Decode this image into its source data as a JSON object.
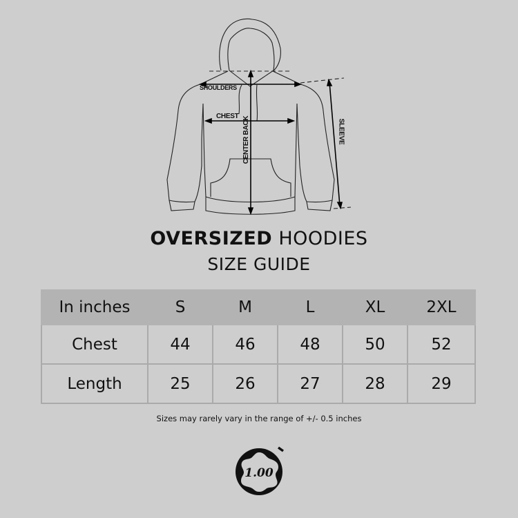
{
  "diagram": {
    "labels": {
      "shoulders": "SHOULDERS",
      "chest": "CHEST",
      "center_back": "CENTER BACK",
      "sleeve": "SLEEVE"
    }
  },
  "title": {
    "bold": "OVERSIZED",
    "rest": "HOODIES",
    "subtitle": "SIZE GUIDE"
  },
  "table": {
    "headers": [
      "In inches",
      "S",
      "M",
      "L",
      "XL",
      "2XL"
    ],
    "rows": [
      [
        "Chest",
        "44",
        "46",
        "48",
        "50",
        "52"
      ],
      [
        "Length",
        "25",
        "26",
        "27",
        "28",
        "29"
      ]
    ]
  },
  "note": "Sizes may rarely vary in the range of +/- 0.5 inches",
  "logo": {
    "text": "1.00"
  },
  "colors": {
    "background": "#cecece",
    "header": "#b3b3b3",
    "ink": "#111111"
  }
}
